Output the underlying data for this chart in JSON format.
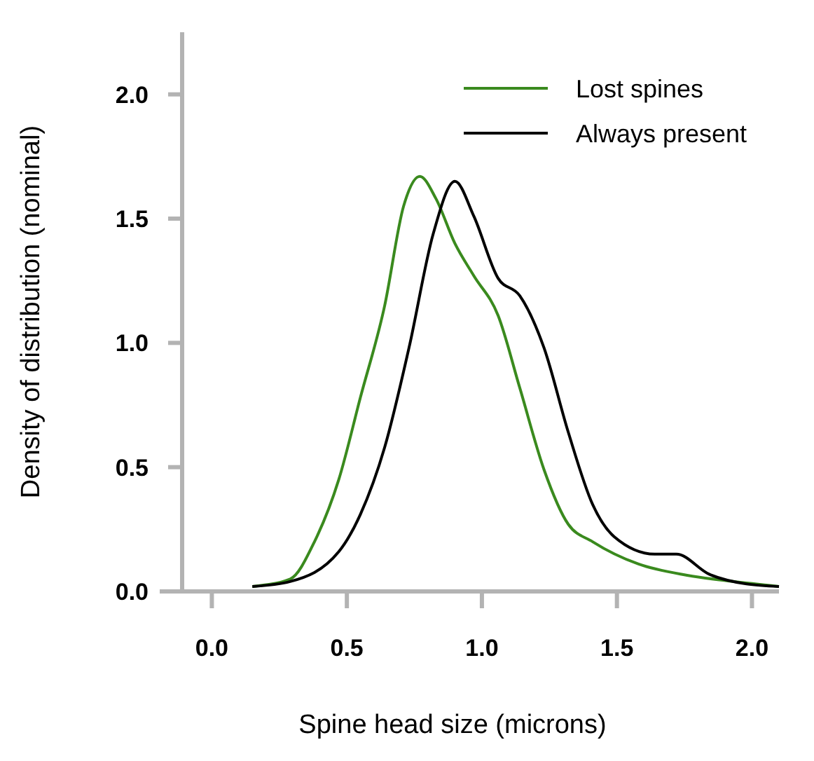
{
  "chart_data": {
    "type": "line",
    "xlabel": "Spine head size (microns)",
    "ylabel": "Density of distribution (nominal)",
    "xlim": [
      -0.11,
      2.1
    ],
    "ylim": [
      0,
      2.25
    ],
    "xticks": [
      {
        "value": 0,
        "label": "0.0"
      },
      0.5,
      {
        "value": 1,
        "label": "1.0"
      },
      1.5,
      {
        "value": 2,
        "label": "2.0"
      }
    ],
    "yticks": [
      {
        "value": 0,
        "label": "0.0"
      },
      0.5,
      {
        "value": 1,
        "label": "1.0"
      },
      1.5,
      {
        "value": 2,
        "label": "2.0"
      }
    ],
    "grid": false,
    "legend": "top right",
    "marker": "none",
    "line_style": "solid",
    "series": [
      {
        "name": "Lost spines",
        "color": "#3a8a1e",
        "x": [
          0.15,
          0.29,
          0.38,
          0.47,
          0.55,
          0.64,
          0.71,
          0.77,
          0.83,
          0.9,
          0.97,
          1.06,
          1.14,
          1.23,
          1.32,
          1.41,
          1.58,
          1.76,
          1.93,
          2.1
        ],
        "values": [
          0.02,
          0.05,
          0.2,
          0.45,
          0.78,
          1.15,
          1.55,
          1.67,
          1.58,
          1.4,
          1.27,
          1.11,
          0.82,
          0.49,
          0.27,
          0.2,
          0.11,
          0.065,
          0.04,
          0.02
        ]
      },
      {
        "name": "Always present",
        "color": "#000000",
        "x": [
          0.15,
          0.29,
          0.47,
          0.55,
          0.64,
          0.73,
          0.82,
          0.9,
          0.97,
          1.06,
          1.14,
          1.23,
          1.32,
          1.41,
          1.49,
          1.64,
          1.72,
          1.84,
          1.98,
          2.1
        ],
        "values": [
          0.02,
          0.04,
          0.16,
          0.31,
          0.58,
          0.98,
          1.44,
          1.65,
          1.51,
          1.26,
          1.19,
          0.98,
          0.64,
          0.35,
          0.22,
          0.15,
          0.15,
          0.07,
          0.03,
          0.02
        ]
      }
    ]
  }
}
